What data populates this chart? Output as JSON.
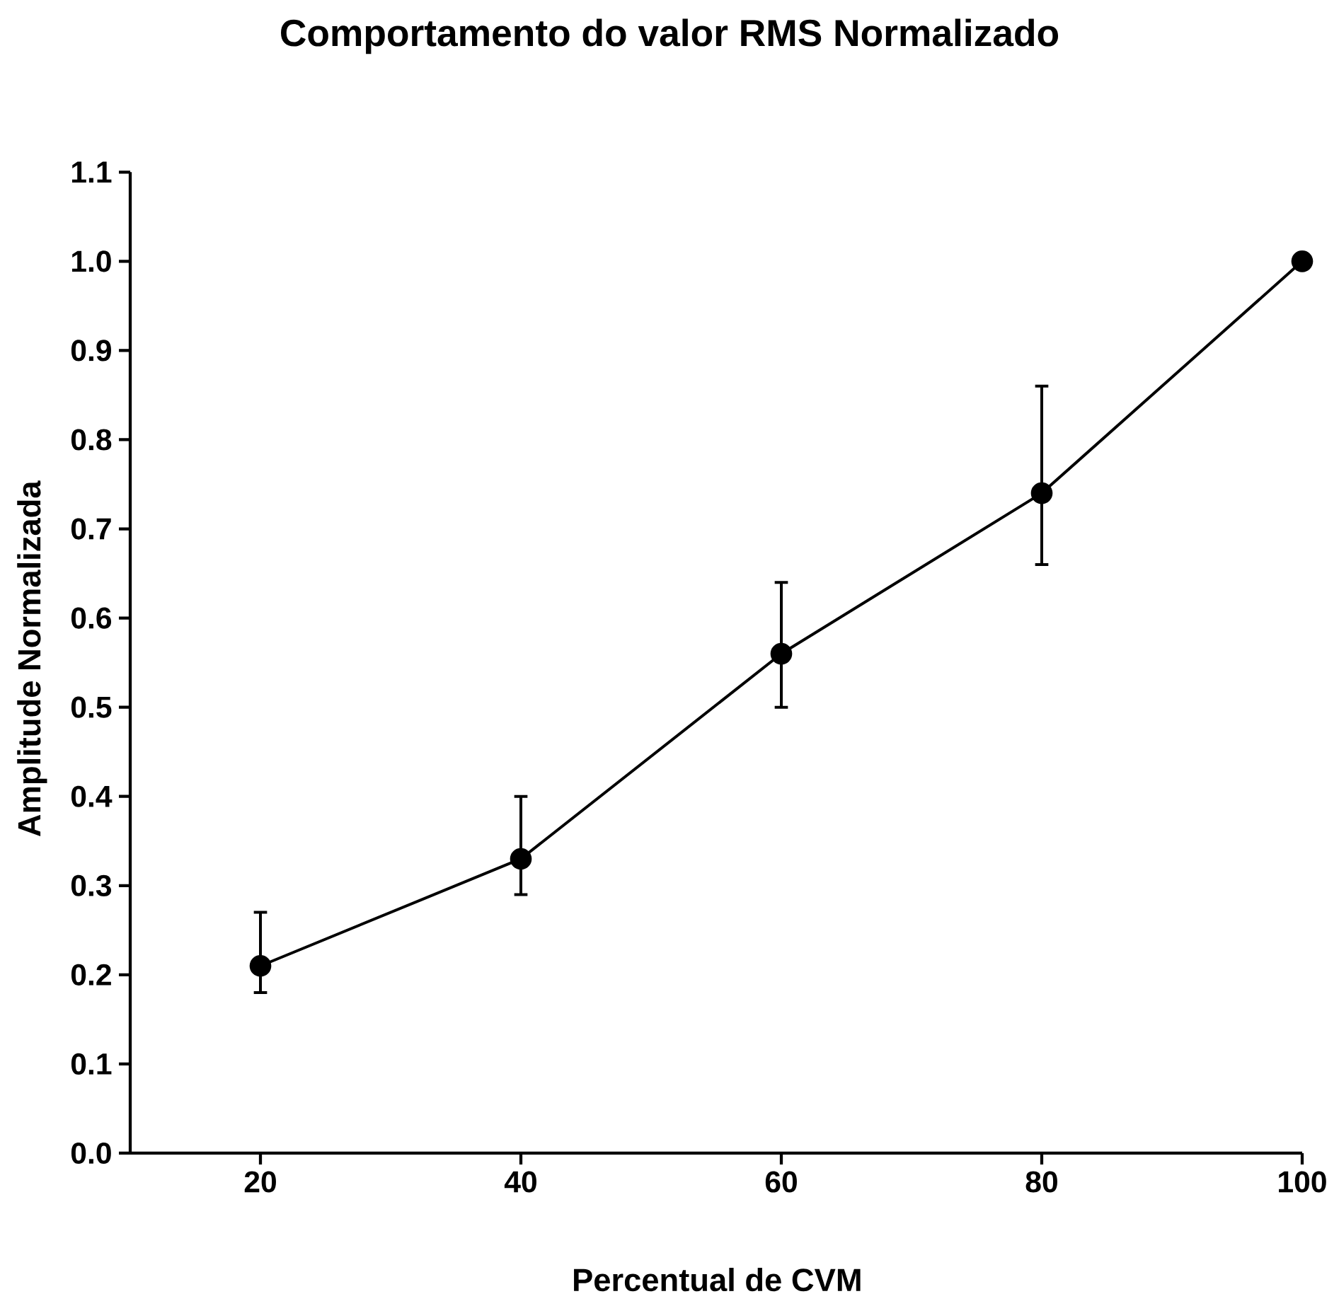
{
  "chart_data": {
    "type": "line",
    "title": "Comportamento do valor RMS Normalizado",
    "xlabel": "Percentual de CVM",
    "ylabel": "Amplitude Normalizada",
    "x": [
      20,
      40,
      60,
      80,
      100
    ],
    "values": [
      0.21,
      0.33,
      0.56,
      0.74,
      1.0
    ],
    "errors": [
      [
        0.18,
        0.27
      ],
      [
        0.29,
        0.4
      ],
      [
        0.5,
        0.64
      ],
      [
        0.66,
        0.86
      ],
      null
    ],
    "color": "#000000",
    "marker": "circle",
    "line_style": "solid",
    "xlim": [
      10,
      100
    ],
    "xticks": [
      20,
      40,
      60,
      80,
      100
    ],
    "ylim": [
      0,
      1.1
    ],
    "yticks": [
      {
        "value": 0,
        "label": "0.0"
      },
      {
        "value": 0.1,
        "label": "0.1"
      },
      {
        "value": 0.2,
        "label": "0.2"
      },
      {
        "value": 0.3,
        "label": "0.3"
      },
      {
        "value": 0.4,
        "label": "0.4"
      },
      {
        "value": 0.5,
        "label": "0.5"
      },
      {
        "value": 0.6,
        "label": "0.6"
      },
      {
        "value": 0.7,
        "label": "0.7"
      },
      {
        "value": 0.8,
        "label": "0.8"
      },
      {
        "value": 0.9,
        "label": "0.9"
      },
      {
        "value": 1.0,
        "label": "1.0"
      },
      {
        "value": 1.1,
        "label": "1.1"
      }
    ]
  }
}
